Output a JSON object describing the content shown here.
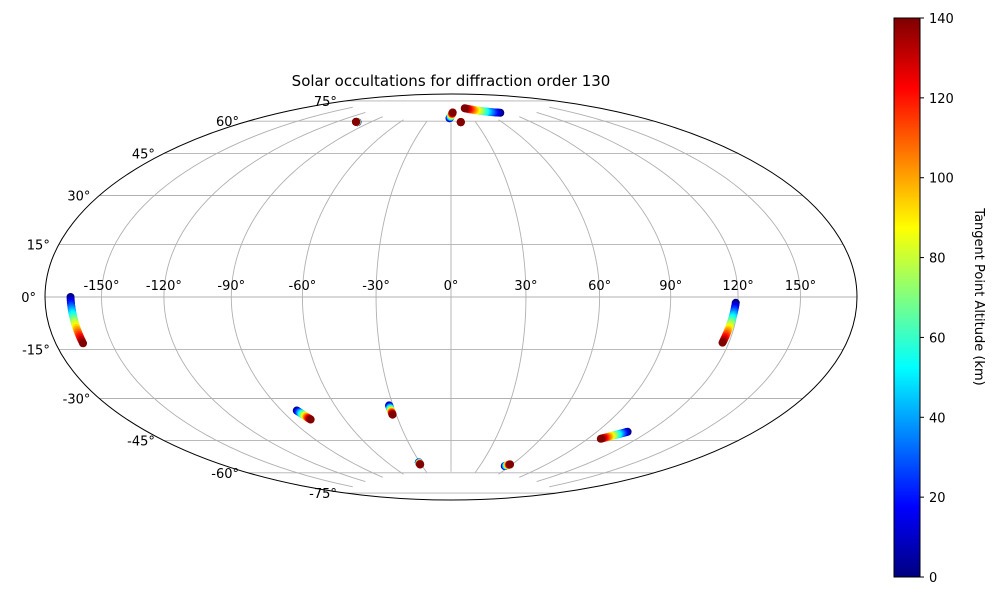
{
  "chart_data": {
    "type": "scatter",
    "projection": "hammer",
    "title": "Solar occultations for diffraction order 130",
    "grid": true,
    "lon_ticks": [
      -150,
      -120,
      -90,
      -60,
      -30,
      0,
      30,
      60,
      90,
      120,
      150
    ],
    "lon_tick_labels": [
      "-150°",
      "-120°",
      "-90°",
      "-60°",
      "-30°",
      "0°",
      "30°",
      "60°",
      "90°",
      "120°",
      "150°"
    ],
    "lat_ticks": [
      75,
      60,
      45,
      30,
      15,
      0,
      -15,
      -30,
      -45,
      -60,
      -75
    ],
    "lat_tick_labels": [
      "75°",
      "60°",
      "45°",
      "30°",
      "15°",
      "0°",
      "-15°",
      "-30°",
      "-45°",
      "-60°",
      "-75°"
    ],
    "colorbar": {
      "label": "Tangent Point Altitude (km)",
      "colormap": "jet",
      "min": 0,
      "max": 140,
      "ticks": [
        0,
        20,
        40,
        60,
        80,
        100,
        120,
        140
      ],
      "tick_labels": [
        "0",
        "20",
        "40",
        "60",
        "80",
        "100",
        "120",
        "140"
      ]
    },
    "series": [
      {
        "lon_start": -166,
        "lat_start": 0,
        "lon_end": -165,
        "lat_end": -14,
        "alt_start": 0,
        "alt_end": 140
      },
      {
        "lon_start": 119,
        "lat_start": -2,
        "lon_end": 117,
        "lat_end": -16,
        "alt_start": 0,
        "alt_end": 140
      },
      {
        "lon_start": 108,
        "lat_start": -51,
        "lon_end": 98,
        "lat_end": -55,
        "alt_start": 0,
        "alt_end": 140
      },
      {
        "lon_start": -82,
        "lat_start": -44,
        "lon_end": -79,
        "lat_end": -48,
        "alt_start": 0,
        "alt_end": 140
      },
      {
        "lon_start": -32,
        "lat_start": -44,
        "lon_end": -32,
        "lat_end": -48,
        "alt_start": 0,
        "alt_end": 140
      },
      {
        "lon_start": -31,
        "lat_start": -70,
        "lon_end": -31,
        "lat_end": -71,
        "alt_start": 0,
        "alt_end": 140
      },
      {
        "lon_start": 55,
        "lat_start": -71,
        "lon_end": 58,
        "lat_end": -70,
        "alt_start": 0,
        "alt_end": 140
      },
      {
        "lon_start": -102,
        "lat_start": 71,
        "lon_end": -104,
        "lat_end": 71,
        "alt_start": 0,
        "alt_end": 140
      },
      {
        "lon_start": 12,
        "lat_start": 75,
        "lon_end": 12,
        "lat_end": 75,
        "alt_start": 0,
        "alt_end": 140
      },
      {
        "lon_start": -2,
        "lat_start": 77,
        "lon_end": 3,
        "lat_end": 80,
        "alt_start": 0,
        "alt_end": 140
      },
      {
        "lon_start": 78,
        "lat_start": 78,
        "lon_end": 30,
        "lat_end": 82,
        "alt_start": 0,
        "alt_end": 140
      }
    ]
  }
}
